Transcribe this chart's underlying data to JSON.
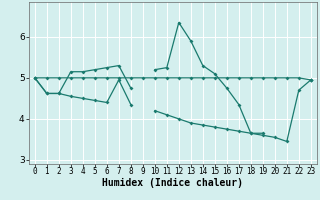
{
  "title": "",
  "xlabel": "Humidex (Indice chaleur)",
  "background_color": "#d4efee",
  "line_color": "#1a7a6e",
  "x": [
    0,
    1,
    2,
    3,
    4,
    5,
    6,
    7,
    8,
    9,
    10,
    11,
    12,
    13,
    14,
    15,
    16,
    17,
    18,
    19,
    20,
    21,
    22,
    23
  ],
  "line1": [
    5.0,
    4.62,
    4.62,
    5.15,
    5.15,
    5.2,
    5.25,
    5.3,
    4.75,
    null,
    5.2,
    5.25,
    6.35,
    5.9,
    5.3,
    5.1,
    4.75,
    4.35,
    3.65,
    3.65,
    null,
    null,
    null,
    4.95
  ],
  "line2": [
    5.0,
    4.62,
    4.62,
    4.55,
    4.5,
    4.45,
    4.4,
    4.95,
    4.35,
    null,
    4.2,
    4.1,
    4.0,
    3.9,
    3.85,
    3.8,
    3.75,
    3.7,
    3.65,
    3.6,
    3.55,
    3.45,
    4.7,
    4.95
  ],
  "line3": [
    5.0,
    5.0,
    5.0,
    5.0,
    5.0,
    5.0,
    5.0,
    5.0,
    5.0,
    5.0,
    5.0,
    5.0,
    5.0,
    5.0,
    5.0,
    5.0,
    5.0,
    5.0,
    5.0,
    5.0,
    5.0,
    5.0,
    5.0,
    4.95
  ],
  "ylim": [
    2.9,
    6.85
  ],
  "yticks": [
    3,
    4,
    5,
    6
  ],
  "grid_color": "#ffffff",
  "xlabel_fontsize": 7,
  "tick_fontsize": 5.5
}
